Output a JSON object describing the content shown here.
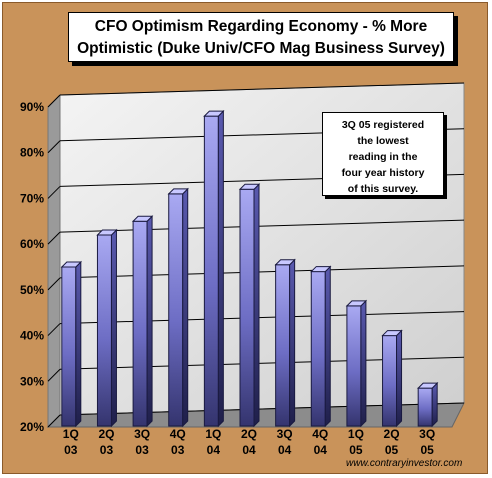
{
  "chart_data": {
    "type": "bar",
    "title": "CFO Optimism Regarding Economy - % More Optimistic (Duke Univ/CFO Mag Business Survey)",
    "title_lines": [
      "CFO Optimism Regarding Economy - % More",
      "Optimistic (Duke Univ/CFO Mag Business Survey)"
    ],
    "categories": [
      "1Q 03",
      "2Q 03",
      "3Q 03",
      "4Q 03",
      "1Q 04",
      "2Q 04",
      "3Q 04",
      "4Q 04",
      "1Q 05",
      "2Q 05",
      "3Q 05"
    ],
    "category_lines": [
      [
        "1Q",
        "03"
      ],
      [
        "2Q",
        "03"
      ],
      [
        "3Q",
        "03"
      ],
      [
        "4Q",
        "03"
      ],
      [
        "1Q",
        "04"
      ],
      [
        "2Q",
        "04"
      ],
      [
        "3Q",
        "04"
      ],
      [
        "4Q",
        "04"
      ],
      [
        "1Q",
        "05"
      ],
      [
        "2Q",
        "05"
      ],
      [
        "3Q",
        "05"
      ]
    ],
    "values": [
      55,
      62,
      65,
      71,
      88,
      72,
      55.5,
      54,
      46.5,
      40,
      28.5
    ],
    "ylim": [
      20,
      90
    ],
    "yticks": [
      20,
      30,
      40,
      50,
      60,
      70,
      80,
      90
    ],
    "ytick_labels": [
      "20%",
      "30%",
      "40%",
      "50%",
      "60%",
      "70%",
      "80%",
      "90%"
    ],
    "grid": true,
    "annotation": "3Q 05 registered\nthe lowest\nreading in the\nfour year history\nof this survey.",
    "xlabel": "",
    "ylabel": ""
  },
  "watermark": "www.contraryinvestor.com",
  "colors": {
    "frame": "#c9935a",
    "bar_top": "#a8a8f0",
    "bar_bottom": "#3a3a7a",
    "bar_edge": "#1a1a40",
    "plot_bg": "#e6e6e6"
  }
}
